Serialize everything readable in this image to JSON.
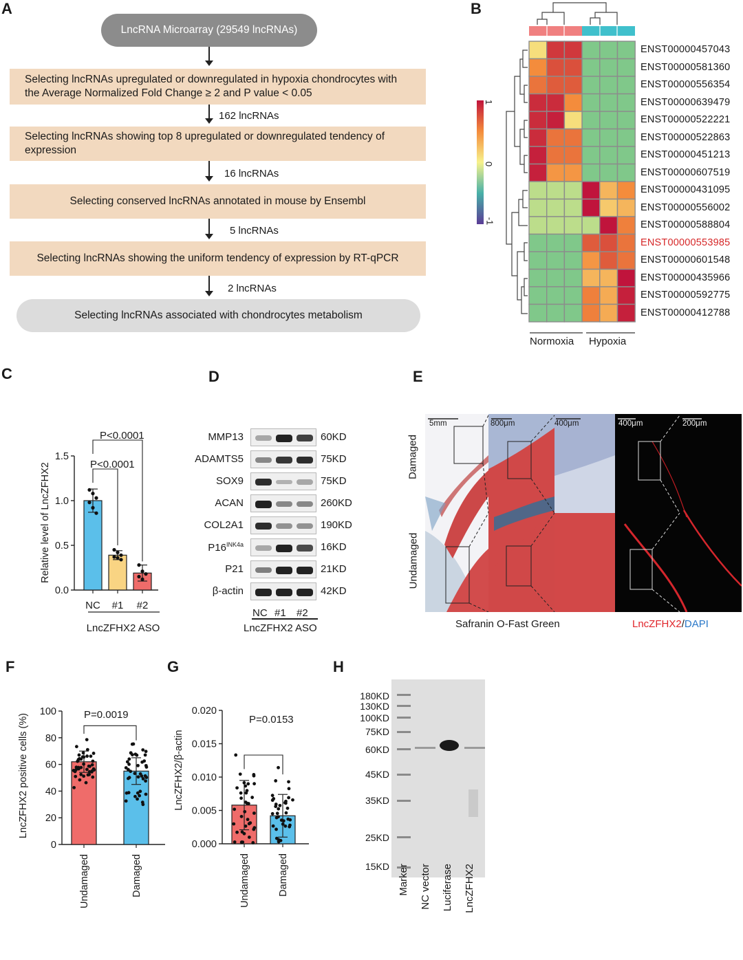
{
  "panels": {
    "a": "A",
    "b": "B",
    "c": "C",
    "d": "D",
    "e": "E",
    "f": "F",
    "g": "G",
    "h": "H"
  },
  "flowchart": {
    "top": "LncRNA Microarray (29549 lncRNAs)",
    "step1": "Selecting lncRNAs upregulated  or downregulated in hypoxia chondrocytes with the Average Normalized Fold Change ≥ 2 and P value < 0.05",
    "count1": "162 lncRNAs",
    "step2": "Selecting lncRNAs showing top 8 upregulated  or downregulated  tendency of expression",
    "count2": "16 lncRNAs",
    "step3": "Selecting conserved lncRNAs annotated in mouse by Ensembl",
    "count3": "5 lncRNAs",
    "step4": "Selecting  lncRNAs showing the uniform tendency of expression by RT-qPCR",
    "count4": "2 lncRNAs",
    "bottom": "Selecting lncRNAs  associated with chondrocytes metabolism"
  },
  "heatmap": {
    "genes": [
      "ENST00000457043",
      "ENST00000581360",
      "ENST00000556354",
      "ENST00000639479",
      "ENST00000522221",
      "ENST00000522863",
      "ENST00000451213",
      "ENST00000607519",
      "ENST00000431095",
      "ENST00000556002",
      "ENST00000588804",
      "ENST00000553985",
      "ENST00000601548",
      "ENST00000435966",
      "ENST00000592775",
      "ENST00000412788"
    ],
    "highlight_gene": "ENST00000553985",
    "highlight_color": "#d62728",
    "groups": [
      "Normoxia",
      "Hypoxia"
    ],
    "group_colors": [
      "#f08080",
      "#40c0cc"
    ],
    "legend": {
      "max": "1",
      "mid": "0",
      "min": "-1"
    },
    "values": [
      [
        0.1,
        0.85,
        0.85,
        -0.2,
        -0.2,
        -0.2
      ],
      [
        0.5,
        0.75,
        0.75,
        -0.2,
        -0.2,
        -0.2
      ],
      [
        0.6,
        0.7,
        0.7,
        -0.2,
        -0.2,
        -0.2
      ],
      [
        0.9,
        0.9,
        0.5,
        -0.2,
        -0.2,
        -0.2
      ],
      [
        0.9,
        0.95,
        0.1,
        -0.2,
        -0.2,
        -0.2
      ],
      [
        0.9,
        0.6,
        0.6,
        -0.2,
        -0.2,
        -0.2
      ],
      [
        0.95,
        0.6,
        0.6,
        -0.2,
        -0.2,
        -0.2
      ],
      [
        0.95,
        0.45,
        0.45,
        -0.2,
        -0.2,
        -0.2
      ],
      [
        -0.1,
        -0.1,
        -0.1,
        1.0,
        0.3,
        0.5
      ],
      [
        -0.1,
        -0.1,
        -0.1,
        1.0,
        0.2,
        0.3
      ],
      [
        -0.1,
        -0.1,
        -0.1,
        -0.1,
        1.0,
        0.55
      ],
      [
        -0.2,
        -0.2,
        -0.2,
        0.7,
        0.75,
        0.6
      ],
      [
        -0.2,
        -0.2,
        -0.2,
        0.45,
        0.7,
        0.6
      ],
      [
        -0.2,
        -0.2,
        -0.2,
        0.3,
        0.3,
        1.0
      ],
      [
        -0.2,
        -0.2,
        -0.2,
        0.55,
        0.35,
        0.95
      ],
      [
        -0.2,
        -0.2,
        -0.2,
        0.55,
        0.35,
        0.95
      ]
    ]
  },
  "chart_c": {
    "ylabel": "Relative level of LncZFHX2",
    "yticks": [
      "0.0",
      "0.5",
      "1.0",
      "1.5"
    ],
    "ylim": [
      0,
      1.5
    ],
    "categories": [
      "NC",
      "#1",
      "#2"
    ],
    "values": [
      1.0,
      0.39,
      0.19
    ],
    "errors": [
      0.13,
      0.05,
      0.09
    ],
    "points": [
      [
        1.12,
        1.08,
        1.03,
        0.98,
        0.92,
        0.86
      ],
      [
        0.45,
        0.42,
        0.39,
        0.37,
        0.36,
        0.34
      ],
      [
        0.28,
        0.21,
        0.18,
        0.15,
        0.12
      ]
    ],
    "colors": [
      "#5bbfea",
      "#f9d483",
      "#ef6c6a"
    ],
    "group_label": "LncZFHX2 ASO",
    "sig1": "P<0.0001",
    "sig2": "P<0.0001"
  },
  "blot_d": {
    "proteins": [
      "MMP13",
      "ADAMTS5",
      "SOX9",
      "ACAN",
      "COL2A1",
      "P16",
      "P21",
      "β-actin"
    ],
    "p16_sup": "INK4a",
    "sizes": [
      "60KD",
      "75KD",
      "75KD",
      "260KD",
      "190KD",
      "16KD",
      "21KD",
      "42KD"
    ],
    "lanes": [
      "NC",
      "#1",
      "#2"
    ],
    "group_label": "LncZFHX2 ASO"
  },
  "histology_e": {
    "scale1": "5mm",
    "scale2": "800μm",
    "scale3": "400μm",
    "scale4": "400μm",
    "scale5": "200μm",
    "row_top": "Damaged",
    "row_bottom": "Undamaged",
    "caption_left": "Safranin O-Fast Green",
    "caption_right_red": "LncZFHX2",
    "caption_right_sep": "/",
    "caption_right_blue": "DAPI",
    "red": "#e0242a",
    "blue": "#2a78c8"
  },
  "chart_f": {
    "ylabel": "LncZFHX2 positive cells (%)",
    "yticks": [
      "0",
      "20",
      "40",
      "60",
      "80",
      "100"
    ],
    "ylim": [
      0,
      100
    ],
    "categories": [
      "Undamaged",
      "Damaged"
    ],
    "values": [
      62,
      55
    ],
    "errors": [
      8,
      10
    ],
    "colors": [
      "#ef6c6a",
      "#5bbfea"
    ],
    "sig": "P=0.0019"
  },
  "chart_g": {
    "ylabel": "LncZFHX2/β-actin",
    "yticks": [
      "0.000",
      "0.005",
      "0.010",
      "0.015",
      "0.020"
    ],
    "ylim": [
      0,
      0.02
    ],
    "categories": [
      "Undamaged",
      "Damaged"
    ],
    "values": [
      0.0058,
      0.0042
    ],
    "errors": [
      0.0037,
      0.0032
    ],
    "colors": [
      "#ef6c6a",
      "#5bbfea"
    ],
    "sig": "P=0.0153"
  },
  "blot_h": {
    "markers": [
      "180KD",
      "130KD",
      "100KD",
      "75KD",
      "60KD",
      "45KD",
      "35KD",
      "25KD",
      "15KD"
    ],
    "lanes": [
      "Marker",
      "NC vector",
      "Luciferase",
      "LncZFHX2"
    ]
  },
  "chart_data": [
    {
      "type": "heatmap",
      "title": "",
      "rows": [
        "ENST00000457043",
        "ENST00000581360",
        "ENST00000556354",
        "ENST00000639479",
        "ENST00000522221",
        "ENST00000522863",
        "ENST00000451213",
        "ENST00000607519",
        "ENST00000431095",
        "ENST00000556002",
        "ENST00000588804",
        "ENST00000553985",
        "ENST00000601548",
        "ENST00000435966",
        "ENST00000592775",
        "ENST00000412788"
      ],
      "columns": [
        "Normoxia",
        "Normoxia",
        "Normoxia",
        "Hypoxia",
        "Hypoxia",
        "Hypoxia"
      ],
      "scale": [
        -1,
        1
      ]
    },
    {
      "type": "bar",
      "categories": [
        "NC",
        "#1",
        "#2"
      ],
      "values": [
        1.0,
        0.39,
        0.19
      ],
      "ylabel": "Relative level of LncZFHX2",
      "xlabel": "LncZFHX2 ASO",
      "ylim": [
        0,
        1.5
      ]
    },
    {
      "type": "bar",
      "categories": [
        "Undamaged",
        "Damaged"
      ],
      "values": [
        62,
        55
      ],
      "ylabel": "LncZFHX2 positive cells (%)",
      "ylim": [
        0,
        100
      ]
    },
    {
      "type": "bar",
      "categories": [
        "Undamaged",
        "Damaged"
      ],
      "values": [
        0.0058,
        0.0042
      ],
      "ylabel": "LncZFHX2/β-actin",
      "ylim": [
        0,
        0.02
      ]
    }
  ]
}
